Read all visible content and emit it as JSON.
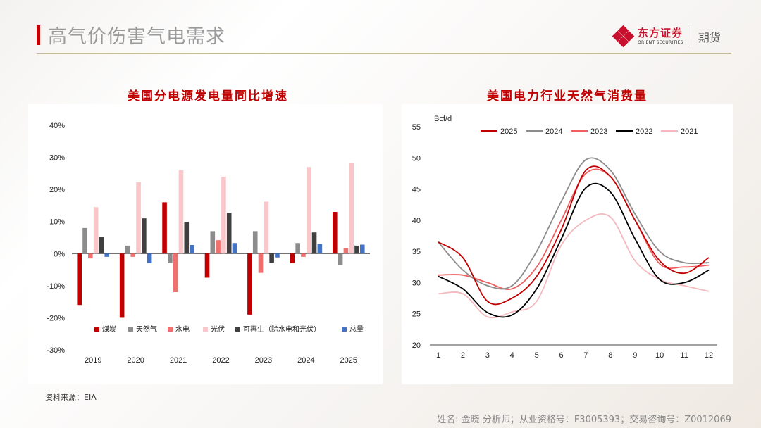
{
  "header": {
    "title": "高气价伤害气电需求"
  },
  "logo": {
    "name_cn": "东方证券",
    "name_en": "ORIENT SECURITIES",
    "division": "期货"
  },
  "source": "资料来源：EIA",
  "footer": "姓名: 金晓 分析师；从业资格号：F3005393；交易咨询号：Z0012069",
  "chart_data": [
    {
      "type": "bar",
      "title": "美国分电源发电量同比增速",
      "categories": [
        "2019",
        "2020",
        "2021",
        "2022",
        "2023",
        "2024",
        "2025"
      ],
      "ylim": [
        -30,
        40
      ],
      "yticks": [
        "-30%",
        "-20%",
        "-10%",
        "0%",
        "10%",
        "20%",
        "30%",
        "40%"
      ],
      "legend_position": "bottom-inside",
      "series": [
        {
          "name": "煤炭",
          "color": "#c00000",
          "values": [
            -16,
            -20,
            16,
            -7.5,
            -19,
            -3,
            13
          ]
        },
        {
          "name": "天然气",
          "color": "#8c8c8c",
          "values": [
            8,
            2.5,
            -3,
            7,
            7,
            3.3,
            -3.5
          ]
        },
        {
          "name": "水电",
          "color": "#f07070",
          "values": [
            -1.5,
            -1,
            -12,
            4.2,
            -6,
            -1,
            1.8
          ]
        },
        {
          "name": "光伏",
          "color": "#f9c6c9",
          "values": [
            14.5,
            22.3,
            26,
            24,
            16.2,
            27,
            28.2
          ]
        },
        {
          "name": "可再生（除水电和光伏）",
          "color": "#404040",
          "values": [
            5.3,
            11,
            9.9,
            12.7,
            -2.8,
            6.6,
            2.5
          ]
        },
        {
          "name": "总量",
          "color": "#4472c4",
          "values": [
            -1,
            -3,
            2.7,
            3.3,
            -1.2,
            3,
            2.8
          ]
        }
      ]
    },
    {
      "type": "line",
      "title": "美国电力行业天然气消费量",
      "unit_label": "Bcf/d",
      "x": [
        1,
        2,
        3,
        4,
        5,
        6,
        7,
        8,
        9,
        10,
        11,
        12
      ],
      "ylim": [
        20,
        55
      ],
      "yticks": [
        20,
        25,
        30,
        35,
        40,
        45,
        50,
        55
      ],
      "legend_position": "top",
      "series": [
        {
          "name": "2025",
          "color": "#c00000",
          "values": [
            36.5,
            34,
            27,
            27.5,
            31,
            38.5,
            48,
            47,
            40,
            33.5,
            31.5,
            34
          ]
        },
        {
          "name": "2024",
          "color": "#8c8c8c",
          "values": [
            36.5,
            32,
            29.5,
            29.5,
            35,
            43,
            49.7,
            48,
            41,
            35,
            33.2,
            33.2
          ]
        },
        {
          "name": "2023",
          "color": "#ee6060",
          "values": [
            31.2,
            31.2,
            30,
            29,
            32.5,
            40,
            47.5,
            47,
            40,
            33,
            32.5,
            32.8
          ]
        },
        {
          "name": "2022",
          "color": "#000000",
          "values": [
            31,
            29,
            25.2,
            24.8,
            29,
            37,
            45.2,
            44.5,
            37,
            30.5,
            30,
            32
          ]
        },
        {
          "name": "2021",
          "color": "#f4b8bd",
          "values": [
            28.2,
            28.2,
            24.5,
            25.3,
            27,
            36,
            40,
            40.5,
            33.5,
            30.5,
            29.5,
            28.6
          ]
        }
      ]
    }
  ]
}
